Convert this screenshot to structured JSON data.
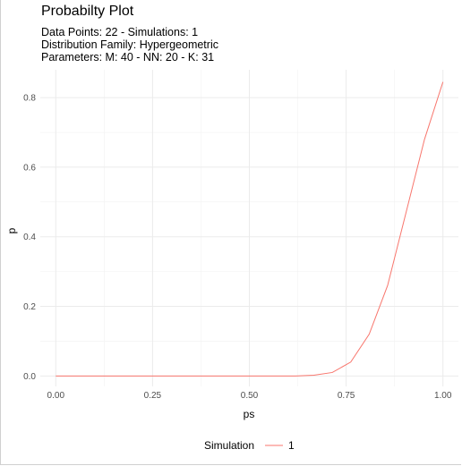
{
  "chart_data": {
    "type": "line",
    "title": "Probabilty Plot",
    "subtitle_lines": [
      "Data Points: 22 - Simulations: 1",
      "Distribution Family: Hypergeometric",
      "Parameters: M: 40 - NN: 20 - K: 31"
    ],
    "xlabel": "ps",
    "ylabel": "p",
    "xlim": [
      -0.04,
      1.04
    ],
    "ylim": [
      -0.03,
      0.88
    ],
    "x_ticks": [
      0.0,
      0.25,
      0.5,
      0.75,
      1.0
    ],
    "x_tick_labels": [
      "0.00",
      "0.25",
      "0.50",
      "0.75",
      "1.00"
    ],
    "y_ticks": [
      0.0,
      0.2,
      0.4,
      0.6,
      0.8
    ],
    "y_tick_labels": [
      "0.0",
      "0.2",
      "0.4",
      "0.6",
      "0.8"
    ],
    "grid": true,
    "legend": {
      "title": "Simulation",
      "position": "bottom"
    },
    "series": [
      {
        "name": "1",
        "color": "#F8766D",
        "x": [
          0.0,
          0.0476,
          0.0952,
          0.1429,
          0.1905,
          0.2381,
          0.2857,
          0.3333,
          0.381,
          0.4286,
          0.4762,
          0.5238,
          0.5714,
          0.619,
          0.6667,
          0.7143,
          0.7619,
          0.8095,
          0.8571,
          0.9048,
          0.9524,
          1.0
        ],
        "y": [
          0.0,
          0.0,
          0.0,
          0.0,
          0.0,
          0.0,
          0.0,
          0.0,
          0.0,
          0.0,
          0.0,
          0.0,
          0.0,
          0.0,
          0.002,
          0.01,
          0.04,
          0.12,
          0.26,
          0.47,
          0.68,
          0.845
        ]
      }
    ]
  }
}
